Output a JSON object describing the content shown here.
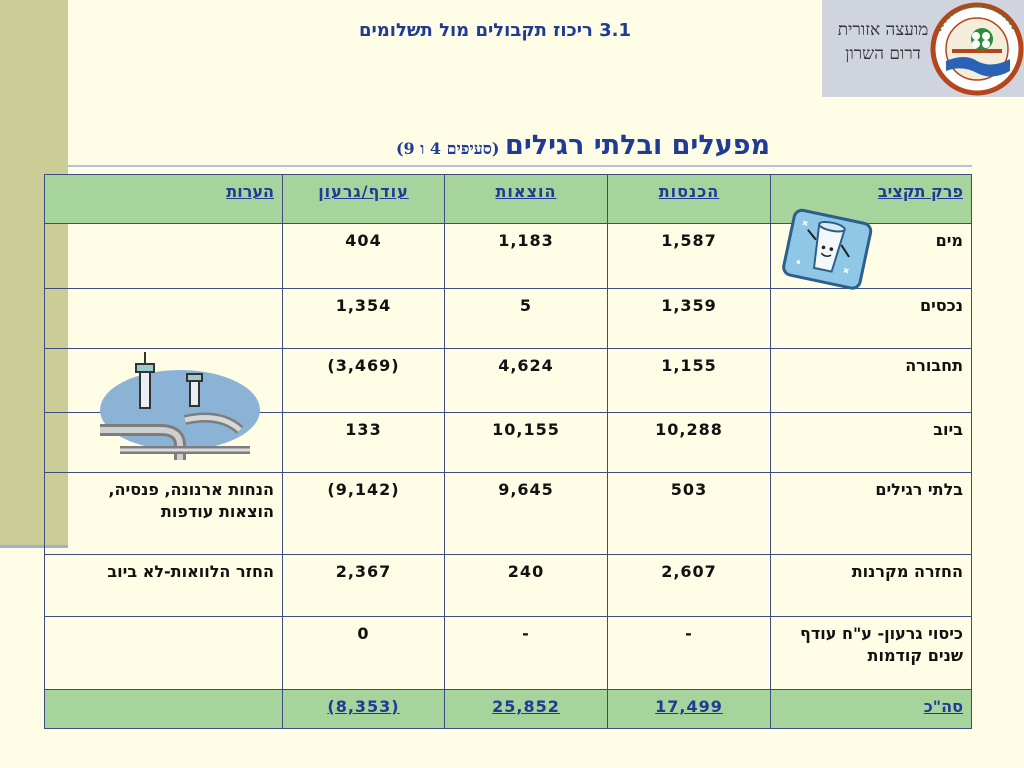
{
  "header": {
    "subtitle": "3.1 ריכוז תקבולים מול תשלומים",
    "title": "מפעלים ובלתי רגילים",
    "title_note": "(סעיפים 4 ו 9)"
  },
  "logo": {
    "line1": "מועצה אזורית",
    "line2": "דרום השרון",
    "emblem_text": "מועצה אזורית דרום השרון",
    "emblem_icon": "council-emblem",
    "colors": {
      "ring": "#b5451b",
      "green": "#2e8b3d",
      "blue": "#2a63b5"
    }
  },
  "table": {
    "columns": {
      "park": "פרק תקציב",
      "income": "הכנסות",
      "expense": "הוצאות",
      "surplus": "עודף/גרעון",
      "notes": "הערות"
    },
    "rows": [
      {
        "park": "מים",
        "income": "1,587",
        "expense": "1,183",
        "surplus": "404",
        "notes": ""
      },
      {
        "park": "נכסים",
        "income": "1,359",
        "expense": "5",
        "surplus": "1,354",
        "notes": ""
      },
      {
        "park": "תחבורה",
        "income": "1,155",
        "expense": "4,624",
        "surplus": "(3,469)",
        "notes": ""
      },
      {
        "park": "ביוב",
        "income": "10,288",
        "expense": "10,155",
        "surplus": "133",
        "notes": ""
      },
      {
        "park": "בלתי רגילים",
        "income": "503",
        "expense": "9,645",
        "surplus": "(9,142)",
        "notes": "הנחות ארנונה, פנסיה, הוצאות עודפות"
      },
      {
        "park": "החזרה מקרנות",
        "income": "2,607",
        "expense": "240",
        "surplus": "2,367",
        "notes": "החזר הלוואות-לא ביוב"
      },
      {
        "park": "כיסוי גרעון- ע\"ח עודף שנים קודמות",
        "income": "-",
        "expense": "-",
        "surplus": "0",
        "notes": ""
      }
    ],
    "total": {
      "park": "סה\"כ",
      "income": "17,499",
      "expense": "25,852",
      "surplus": "(8,353)",
      "notes": ""
    }
  },
  "clipart": {
    "water": "water-glass-icon",
    "pipes": "pipes-icon"
  },
  "colors": {
    "title": "#1f3b94",
    "header_bg": "#a7d39d",
    "page_bg": "#fffde5",
    "side_band": "#cccc96"
  }
}
